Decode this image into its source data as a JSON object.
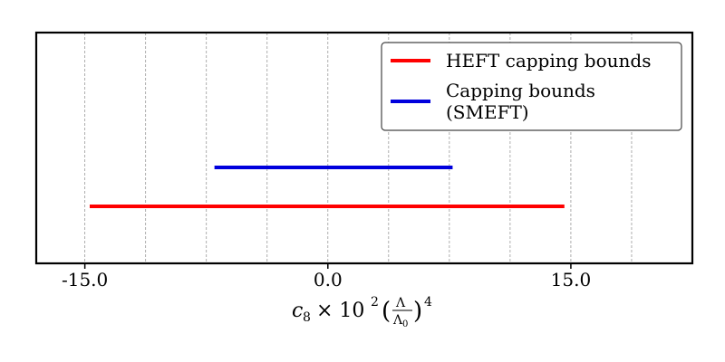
{
  "chart_data": {
    "type": "interval",
    "xlim": [
      -18,
      22.5
    ],
    "xticks": [
      -15,
      0,
      15
    ],
    "xtick_labels": [
      "-15.0",
      "0.0",
      "15.0"
    ],
    "minor_grid_step": 3.75,
    "grid": "vertical dashed",
    "xlabel": {
      "base": "c",
      "subscript": "8",
      "times": "× 10",
      "exponent": "2",
      "frac_num": "Λ",
      "frac_den": "Λ",
      "frac_den_sub": "0",
      "outer_exponent": "4"
    },
    "legend_position": "top-right",
    "series": [
      {
        "name": "HEFT capping bounds",
        "name_lines": [
          "HEFT capping bounds"
        ],
        "color": "#ff0000",
        "interval": [
          -14.7,
          14.6
        ],
        "row": 1
      },
      {
        "name": "Capping bounds (SMEFT)",
        "name_lines": [
          "Capping bounds",
          "(SMEFT)"
        ],
        "color": "#0000dd",
        "interval": [
          -7.0,
          7.7
        ],
        "row": 2
      }
    ]
  }
}
